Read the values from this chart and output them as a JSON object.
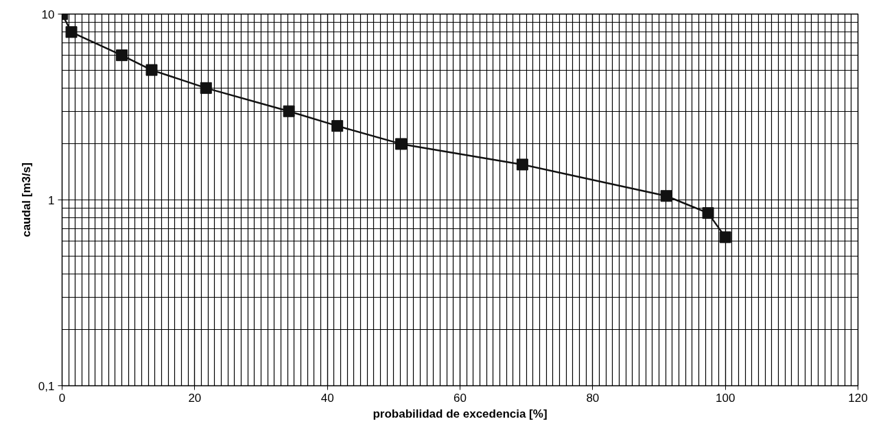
{
  "chart_data": {
    "type": "line",
    "xlabel": "probabilidad de excedencia [%]",
    "ylabel": "caudal [m3/s]",
    "x": [
      0,
      1.4,
      9,
      13.5,
      21.7,
      34.2,
      41.5,
      51.1,
      69.4,
      91.1,
      97.4,
      100
    ],
    "series": [
      {
        "color": "#111111",
        "values": [
          10,
          8,
          6,
          5,
          4,
          3,
          2.5,
          2,
          1.55,
          1.05,
          0.85,
          0.63
        ]
      }
    ],
    "xlim": [
      0,
      120
    ],
    "xticks": [
      0,
      20,
      40,
      60,
      80,
      100,
      120
    ],
    "ylim": [
      0.1,
      10
    ],
    "yticks": [
      {
        "value": 0.1,
        "label": "0,1"
      },
      1,
      10
    ],
    "log": "y",
    "grid": true,
    "marker": "square",
    "line_style": "solid"
  }
}
